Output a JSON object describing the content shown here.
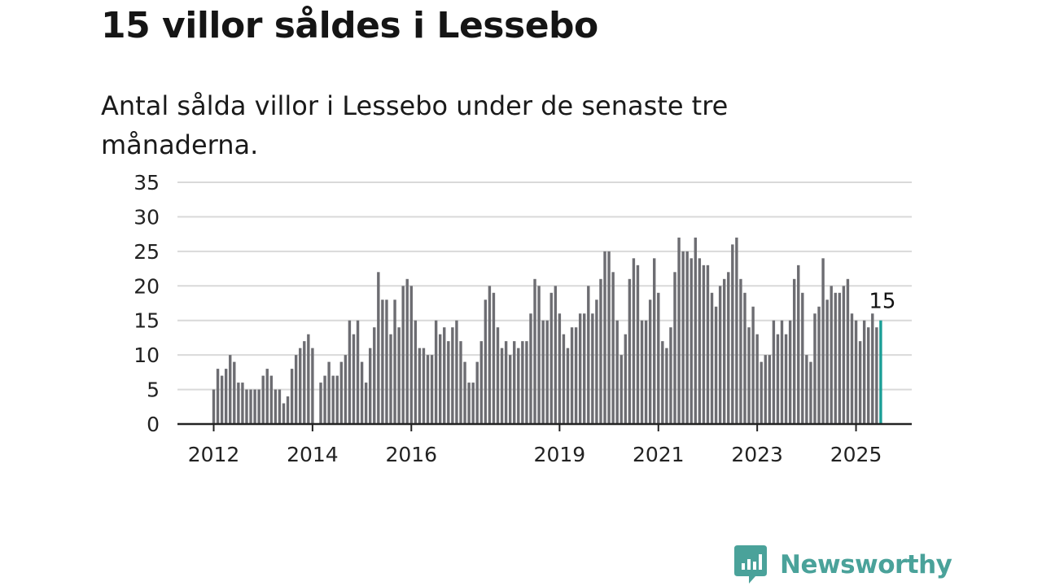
{
  "title": "15 villor såldes i Lessebo",
  "subtitle": "Antal sålda villor i Lessebo under de senaste tre månaderna.",
  "brand": {
    "name": "Newsworthy",
    "color": "#4aa29a"
  },
  "chart_data": {
    "type": "bar",
    "title": "15 villor såldes i Lessebo",
    "subtitle": "Antal sålda villor i Lessebo under de senaste tre månaderna.",
    "xlabel": "",
    "ylabel": "",
    "ylim": [
      0,
      35
    ],
    "yticks": [
      0,
      5,
      10,
      15,
      20,
      25,
      30,
      35
    ],
    "xticks": [
      "2012",
      "2014",
      "2016",
      "2019",
      "2021",
      "2023",
      "2025"
    ],
    "grid": true,
    "bar_color": "#6d6d72",
    "highlight_color": "#1a9e96",
    "start": "2012-01",
    "end": "2025-07",
    "values": [
      5,
      8,
      7,
      8,
      10,
      9,
      6,
      6,
      5,
      5,
      5,
      5,
      7,
      8,
      7,
      5,
      5,
      3,
      4,
      8,
      10,
      11,
      12,
      13,
      11,
      0,
      6,
      7,
      9,
      7,
      7,
      9,
      10,
      15,
      13,
      15,
      9,
      6,
      11,
      14,
      22,
      18,
      18,
      13,
      18,
      14,
      20,
      21,
      20,
      15,
      11,
      11,
      10,
      10,
      15,
      13,
      14,
      12,
      14,
      15,
      12,
      9,
      6,
      6,
      9,
      12,
      18,
      20,
      19,
      14,
      11,
      12,
      10,
      12,
      11,
      12,
      12,
      16,
      21,
      20,
      15,
      15,
      19,
      20,
      16,
      13,
      11,
      14,
      14,
      16,
      16,
      20,
      16,
      18,
      21,
      25,
      25,
      22,
      15,
      10,
      13,
      21,
      24,
      23,
      15,
      15,
      18,
      24,
      19,
      12,
      11,
      14,
      22,
      27,
      25,
      25,
      24,
      27,
      24,
      23,
      23,
      19,
      17,
      20,
      21,
      22,
      26,
      27,
      21,
      19,
      14,
      17,
      13,
      9,
      10,
      10,
      15,
      13,
      15,
      13,
      15,
      21,
      23,
      19,
      10,
      9,
      16,
      17,
      24,
      18,
      20,
      19,
      19,
      20,
      21,
      16,
      15,
      12,
      15,
      14,
      16,
      14,
      15
    ],
    "annotations": [
      {
        "label": "15",
        "value": 15,
        "date": "2025-07"
      }
    ]
  }
}
